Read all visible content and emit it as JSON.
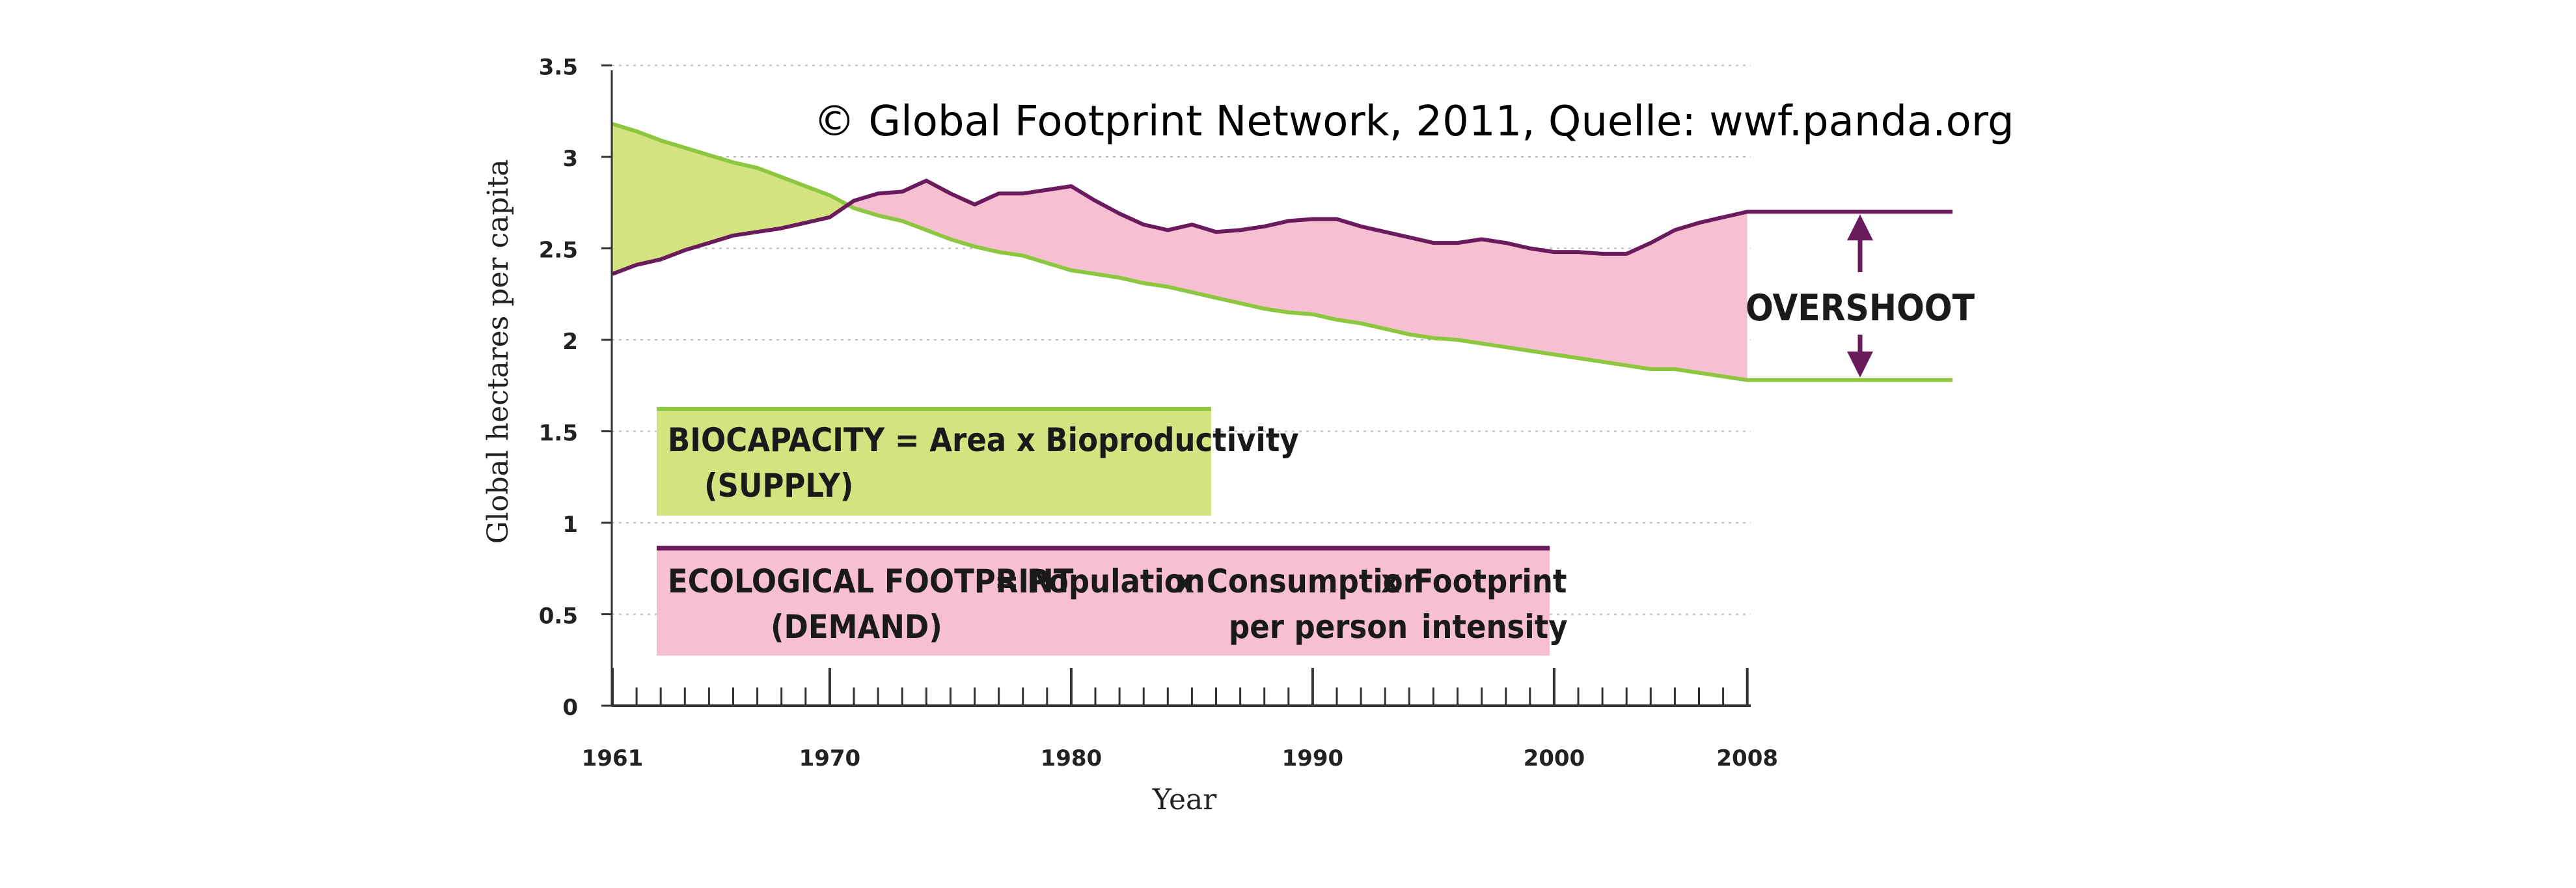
{
  "chart_data": {
    "type": "area",
    "x_label": "Year",
    "y_label": "Global hectares per capita",
    "ylim": [
      0,
      3.5
    ],
    "y_ticks": [
      "0",
      "0.5",
      "1",
      "1.5",
      "2",
      "2.5",
      "3",
      "3.5"
    ],
    "x_tick_labels": [
      "1961",
      "1970",
      "1980",
      "1990",
      "2000",
      "2008"
    ],
    "grid": "horizontal dotted",
    "x": [
      1961,
      1962,
      1963,
      1964,
      1965,
      1966,
      1967,
      1968,
      1969,
      1970,
      1971,
      1972,
      1973,
      1974,
      1975,
      1976,
      1977,
      1978,
      1979,
      1980,
      1981,
      1982,
      1983,
      1984,
      1985,
      1986,
      1987,
      1988,
      1989,
      1990,
      1991,
      1992,
      1993,
      1994,
      1995,
      1996,
      1997,
      1998,
      1999,
      2000,
      2001,
      2002,
      2003,
      2004,
      2005,
      2006,
      2007,
      2008
    ],
    "series": [
      {
        "key": "biocapacity",
        "color": "#8dc63f",
        "fill": "#d3e37f",
        "values": [
          3.18,
          3.14,
          3.09,
          3.05,
          3.01,
          2.97,
          2.94,
          2.89,
          2.84,
          2.79,
          2.72,
          2.68,
          2.65,
          2.6,
          2.55,
          2.51,
          2.48,
          2.46,
          2.42,
          2.38,
          2.36,
          2.34,
          2.31,
          2.29,
          2.26,
          2.23,
          2.2,
          2.17,
          2.15,
          2.14,
          2.11,
          2.09,
          2.06,
          2.03,
          2.01,
          2.0,
          1.98,
          1.96,
          1.94,
          1.92,
          1.9,
          1.88,
          1.86,
          1.84,
          1.84,
          1.82,
          1.8,
          1.78
        ]
      },
      {
        "key": "ecological_footprint",
        "color": "#6a1b5c",
        "fill": "#f6bfd2",
        "values": [
          2.36,
          2.41,
          2.44,
          2.49,
          2.53,
          2.57,
          2.59,
          2.61,
          2.64,
          2.67,
          2.76,
          2.8,
          2.81,
          2.87,
          2.8,
          2.74,
          2.8,
          2.8,
          2.82,
          2.84,
          2.76,
          2.69,
          2.63,
          2.6,
          2.63,
          2.59,
          2.6,
          2.62,
          2.65,
          2.66,
          2.66,
          2.62,
          2.59,
          2.56,
          2.53,
          2.53,
          2.55,
          2.53,
          2.5,
          2.48,
          2.48,
          2.47,
          2.47,
          2.53,
          2.6,
          2.64,
          2.67,
          2.7
        ]
      }
    ],
    "overshoot_label": "OVERSHOOT",
    "annotations": {
      "biocapacity_box": {
        "line1": "BIOCAPACITY = Area x Bioproductivity",
        "line2": "(SUPPLY)"
      },
      "footprint_box": {
        "eq_lhs": "ECOLOGICAL FOOTPRINT",
        "demand": "(DEMAND)",
        "eq_sign": "=",
        "population": "Population",
        "x1": "x",
        "consumption": "Consumption",
        "per_person": "per person",
        "x2": "x",
        "footprint": "Footprint",
        "intensity": "intensity"
      }
    },
    "copyright": "© Global Footprint Network, 2011, Quelle: wwf.panda.org"
  }
}
